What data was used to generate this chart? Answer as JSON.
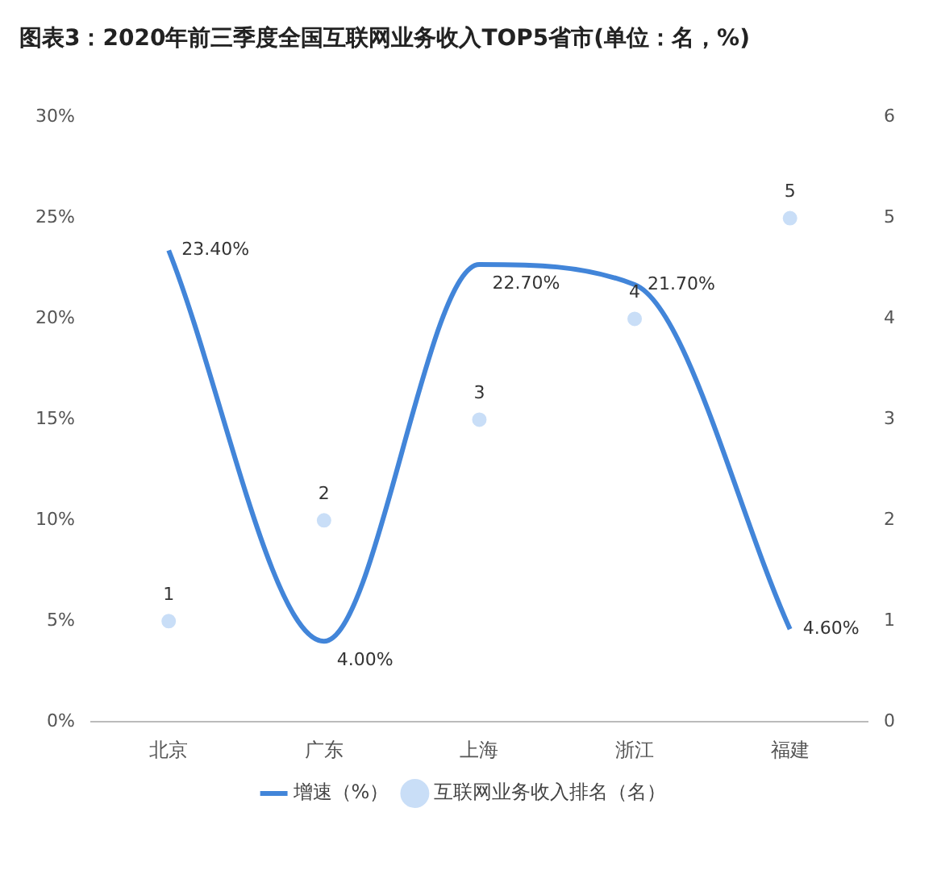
{
  "chart_data": {
    "type": "line",
    "title": "图表3：2020年前三季度全国互联网业务收入TOP5省市(单位：名，%)",
    "categories": [
      "北京",
      "广东",
      "上海",
      "浙江",
      "福建"
    ],
    "series": [
      {
        "name": "增速（%）",
        "color": "#4285d9",
        "values": [
          23.4,
          4.0,
          22.7,
          21.7,
          4.6
        ],
        "value_labels": [
          "23.40%",
          "4.00%",
          "22.70%",
          "21.70%",
          "4.60%"
        ]
      },
      {
        "name": "互联网业务收入排名（名）",
        "type": "scatter",
        "axis": "y2",
        "color": "#c9def7",
        "values": [
          1,
          2,
          3,
          4,
          5
        ],
        "value_labels": [
          "1",
          "2",
          "3",
          "4",
          "5"
        ]
      }
    ],
    "ylim": [
      0,
      30
    ],
    "yticks": [
      {
        "value": 0,
        "label": "0%"
      },
      {
        "value": 5,
        "label": "5%"
      },
      {
        "value": 10,
        "label": "10%"
      },
      {
        "value": 15,
        "label": "15%"
      },
      {
        "value": 20,
        "label": "20%"
      },
      {
        "value": 25,
        "label": "25%"
      },
      {
        "value": 30,
        "label": "30%"
      }
    ],
    "y2lim": [
      0,
      6
    ],
    "y2ticks": [
      0,
      1,
      2,
      3,
      4,
      5,
      6
    ],
    "legend": "bottom",
    "grid": false
  }
}
